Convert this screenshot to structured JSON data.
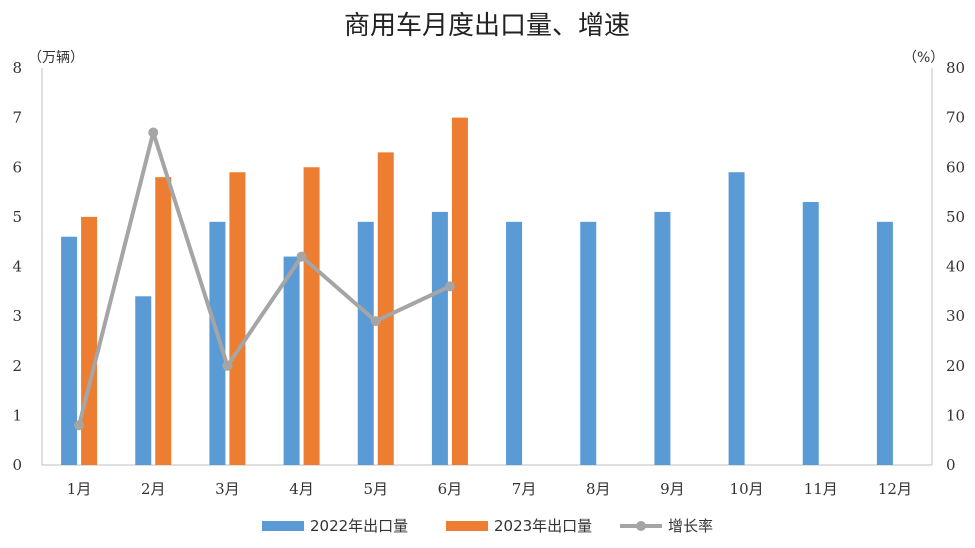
{
  "chart_data": {
    "type": "bar",
    "title": "商用车月度出口量、增速",
    "left_unit": "（万辆）",
    "right_unit": "（%）",
    "categories": [
      "1月",
      "2月",
      "3月",
      "4月",
      "5月",
      "6月",
      "7月",
      "8月",
      "9月",
      "10月",
      "11月",
      "12月"
    ],
    "series": [
      {
        "name": "2022年出口量",
        "type": "bar",
        "axis": "left",
        "color": "#5B9BD5",
        "values": [
          4.6,
          3.4,
          4.9,
          4.2,
          4.9,
          5.1,
          4.9,
          4.9,
          5.1,
          5.9,
          5.3,
          4.9
        ]
      },
      {
        "name": "2023年出口量",
        "type": "bar",
        "axis": "left",
        "color": "#ED7D31",
        "values": [
          5.0,
          5.8,
          5.9,
          6.0,
          6.3,
          7.0,
          null,
          null,
          null,
          null,
          null,
          null
        ]
      },
      {
        "name": "增长率",
        "type": "line",
        "axis": "right",
        "color": "#A5A5A5",
        "values": [
          8,
          67,
          20,
          42,
          29,
          36,
          null,
          null,
          null,
          null,
          null,
          null
        ]
      }
    ],
    "ylim_left": [
      0,
      8
    ],
    "yticks_left": [
      0,
      1,
      2,
      3,
      4,
      5,
      6,
      7,
      8
    ],
    "ylim_right": [
      0,
      80
    ],
    "yticks_right": [
      0,
      10,
      20,
      30,
      40,
      50,
      60,
      70,
      80
    ],
    "grid": false,
    "legend_position": "bottom"
  }
}
